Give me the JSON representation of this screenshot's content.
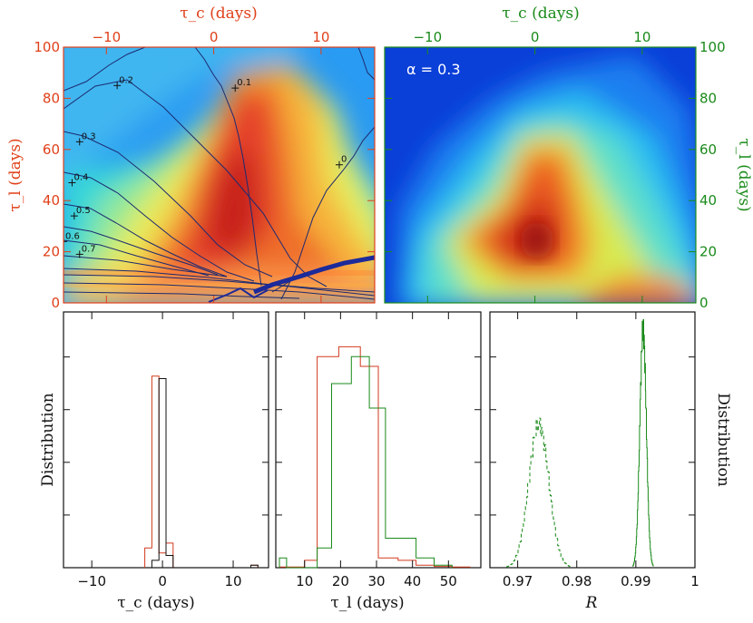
{
  "chart_data": [
    {
      "type": "heatmap",
      "panel": "top-left",
      "top_axis_label": "τ_c (days)",
      "left_axis_label": "τ_l (days)",
      "x_ticks": [
        -10,
        0,
        10
      ],
      "x_range": [
        -14,
        15
      ],
      "y_ticks": [
        0,
        20,
        40,
        60,
        80,
        100
      ],
      "y_range": [
        0,
        100
      ],
      "axis_color": "#e0401a",
      "contour_labels": [
        {
          "text": "0.1",
          "x": 2.0,
          "y": 84
        },
        {
          "text": "0.2",
          "x": -9.0,
          "y": 85
        },
        {
          "text": "0.3",
          "x": -12.5,
          "y": 63
        },
        {
          "text": "0.4",
          "x": -13.2,
          "y": 47
        },
        {
          "text": "0.5",
          "x": -13.0,
          "y": 34
        },
        {
          "text": "0.6",
          "x": -14.0,
          "y": 24
        },
        {
          "text": "0.7",
          "x": -12.5,
          "y": 19
        },
        {
          "text": "0",
          "x": 11.7,
          "y": 54
        }
      ],
      "peak": {
        "x": 0,
        "y": 33
      }
    },
    {
      "type": "heatmap",
      "panel": "top-right",
      "top_axis_label": "τ_c (days)",
      "right_axis_label": "τ_l (days)",
      "x_ticks": [
        -10,
        0,
        10
      ],
      "x_range": [
        -14,
        15
      ],
      "y_ticks": [
        0,
        20,
        40,
        60,
        80,
        100
      ],
      "y_range": [
        0,
        100
      ],
      "axis_color": "#1a8a1a",
      "annotation": "α = 0.3",
      "peak": {
        "x": 0,
        "y": 25
      }
    },
    {
      "type": "bar",
      "panel": "bottom-left",
      "xlabel": "τ_c (days)",
      "ylabel": "Distribution",
      "x_ticks": [
        -10,
        0,
        10
      ],
      "x_range": [
        -14,
        15
      ],
      "series": [
        {
          "name": "red",
          "color": "#d23a1e",
          "edges": [
            -2.5,
            -1.5,
            -0.5,
            0.5,
            1.5,
            12.5,
            13.5
          ],
          "counts": [
            0.08,
            0.78,
            0.06,
            0.1,
            0,
            0.01
          ]
        },
        {
          "name": "black",
          "color": "#111111",
          "edges": [
            -1.5,
            -0.5,
            0.5,
            1.5,
            12.5,
            13.5
          ],
          "counts": [
            0.03,
            0.77,
            0.05,
            0,
            0.01
          ]
        }
      ]
    },
    {
      "type": "bar",
      "panel": "bottom-middle",
      "xlabel": "τ_l (days)",
      "x_ticks": [
        10,
        20,
        30,
        40,
        50
      ],
      "x_range": [
        2,
        59
      ],
      "series": [
        {
          "name": "red",
          "color": "#d23a1e",
          "edges": [
            3,
            10,
            13.5,
            19.5,
            25.5,
            30.5,
            36,
            41,
            46,
            51,
            56
          ],
          "counts": [
            0.003,
            0.03,
            0.86,
            0.9,
            0.82,
            0.04,
            0.03,
            0.01,
            0.005,
            0.003
          ]
        },
        {
          "name": "green",
          "color": "#1a8a1a",
          "edges": [
            3,
            5,
            13.5,
            17.5,
            23,
            28,
            32.5,
            41,
            46,
            51
          ],
          "counts": [
            0.04,
            0,
            0.08,
            0.75,
            0.86,
            0.65,
            0.12,
            0.04,
            0.01
          ]
        }
      ]
    },
    {
      "type": "area",
      "panel": "bottom-right",
      "xlabel": "R",
      "ylabel": "Distribution",
      "x_ticks": [
        0.97,
        0.98,
        0.99,
        1
      ],
      "x_tick_labels": [
        "0.97",
        "0.98",
        "0.99",
        "1"
      ],
      "x_range": [
        0.9653,
        1.0
      ],
      "series": [
        {
          "name": "dashed",
          "color": "#1a8a1a",
          "style": "dashed",
          "center": 0.9735,
          "width": 0.0017,
          "peak": 0.56
        },
        {
          "name": "solid",
          "color": "#1a8a1a",
          "style": "solid",
          "center": 0.9912,
          "width": 0.00055,
          "peak": 0.93
        }
      ]
    }
  ]
}
